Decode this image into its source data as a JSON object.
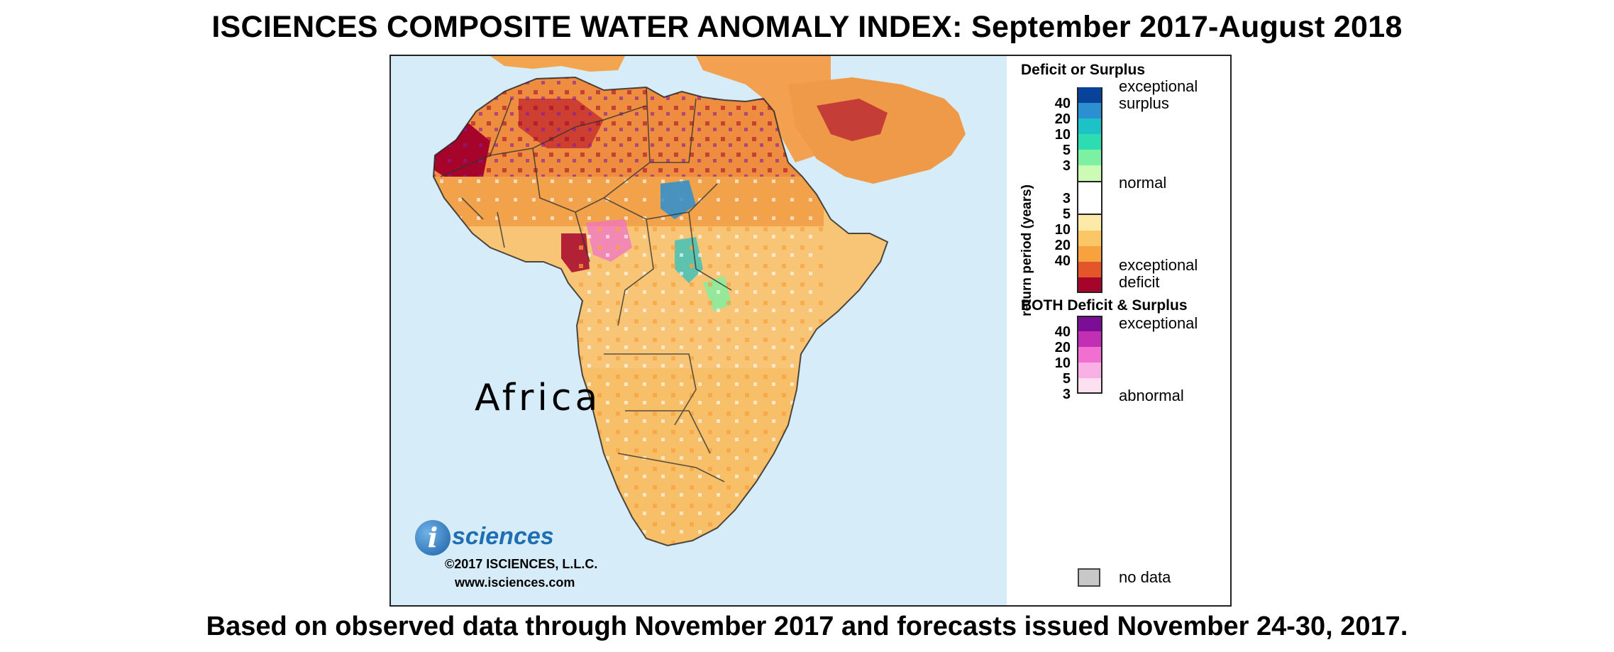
{
  "title": "ISCIENCES COMPOSITE WATER ANOMALY INDEX: September 2017-August 2018",
  "footer": "Based on observed data through November 2017 and forecasts issued November 24-30, 2017.",
  "map": {
    "region_label": "Africa",
    "ocean_color": "#d6ecf8",
    "logo": {
      "letter": "i",
      "wordmark": "sciences",
      "copyright": "©2017 ISCIENCES, L.L.C.",
      "url": "www.isciences.com"
    }
  },
  "legend": {
    "deficit_surplus": {
      "heading": "Deficit or Surplus",
      "axis_label": "return period (years)",
      "top_label_1": "exceptional",
      "top_label_2": "surplus",
      "normal_label": "normal",
      "bottom_label_1": "exceptional",
      "bottom_label_2": "deficit",
      "surplus_ticks": [
        "40",
        "20",
        "10",
        "5",
        "3"
      ],
      "deficit_ticks": [
        "3",
        "5",
        "10",
        "20",
        "40"
      ],
      "surplus_colors": [
        "#08429a",
        "#2b8fd1",
        "#1cc2c6",
        "#2ddcb0",
        "#7cf0a3",
        "#ccfbb5"
      ],
      "normal_color": "#ffffff",
      "deficit_colors": [
        "#fde9a8",
        "#fbc766",
        "#f8a13f",
        "#e4562a",
        "#a6042a"
      ]
    },
    "both": {
      "heading": "BOTH Deficit & Surplus",
      "top_label": "exceptional",
      "bottom_label": "abnormal",
      "ticks": [
        "40",
        "20",
        "10",
        "5",
        "3"
      ],
      "colors": [
        "#7c0d97",
        "#c12fb5",
        "#f06fd0",
        "#f9b0e4",
        "#fde0ef"
      ]
    },
    "no_data": {
      "label": "no data",
      "color": "#c8c8c8"
    }
  }
}
